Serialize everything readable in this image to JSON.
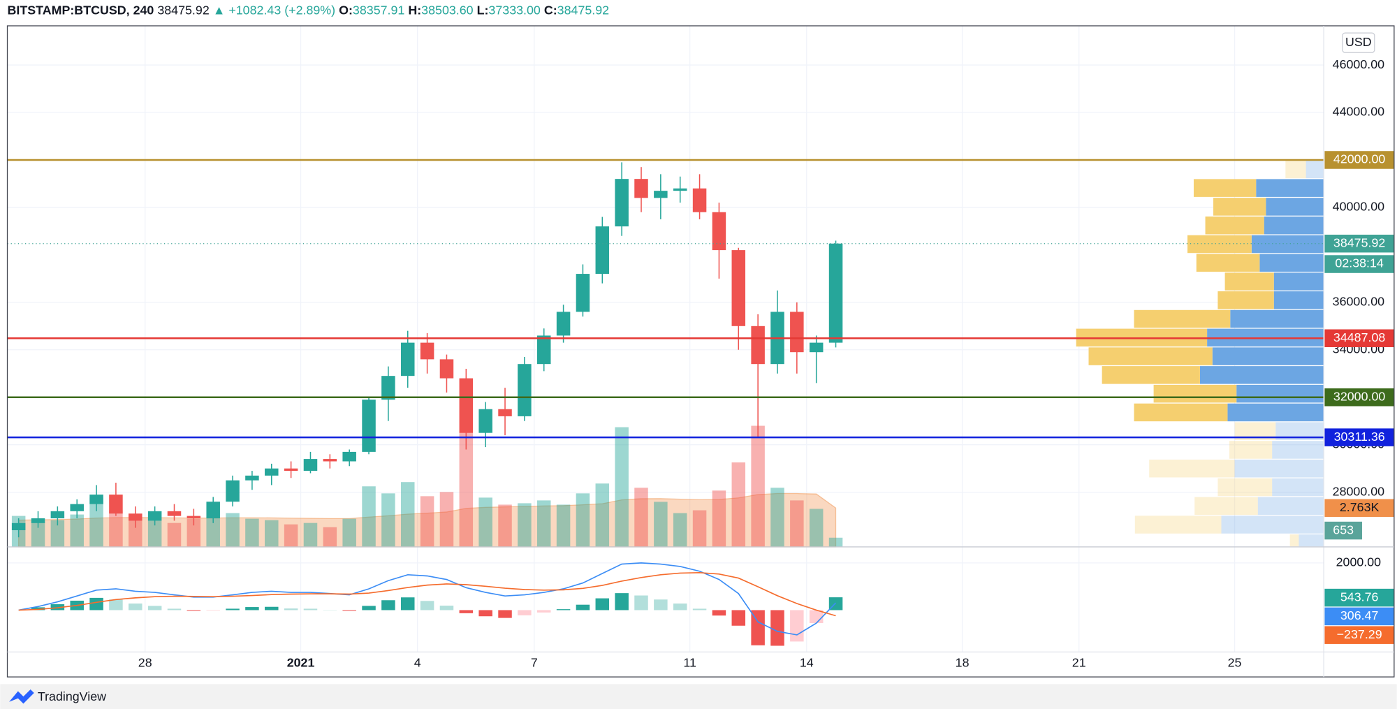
{
  "header": {
    "symbol": "BITSTAMP:BTCUSD, 240",
    "last": "38475.92",
    "change": "▲ +1082.43 (+2.89%)",
    "ohlc": [
      {
        "label": "O:",
        "value": "38357.91"
      },
      {
        "label": "H:",
        "value": "38503.60"
      },
      {
        "label": "L:",
        "value": "37333.00"
      },
      {
        "label": "C:",
        "value": "38475.92"
      }
    ]
  },
  "currency": "USD",
  "brand": "TradingView",
  "chart_data": {
    "type": "candlestick",
    "xlim": [
      -7.54,
      26.29
    ],
    "xticks": [
      {
        "value": -4,
        "label": "28"
      },
      {
        "value": 0,
        "label": "2021"
      },
      {
        "value": 3,
        "label": "4"
      },
      {
        "value": 6,
        "label": "7"
      },
      {
        "value": 10,
        "label": "11"
      },
      {
        "value": 13,
        "label": "14"
      },
      {
        "value": 17,
        "label": "18"
      },
      {
        "value": 20,
        "label": "21"
      },
      {
        "value": 24,
        "label": "25"
      }
    ],
    "ylim": [
      25696,
      47651
    ],
    "yticks": [
      {
        "value": 46000,
        "label": "46000.00"
      },
      {
        "value": 44000,
        "label": "44000.00"
      },
      {
        "value": 40000,
        "label": "40000.00"
      },
      {
        "value": 36000,
        "label": "36000.00"
      },
      {
        "value": 34000,
        "label": "34000.00"
      },
      {
        "value": 30000,
        "label": "30000.00"
      },
      {
        "value": 28000,
        "label": "28000.00"
      }
    ],
    "grid": true,
    "up_color": "#26a69a",
    "down_color": "#ef5350",
    "candles": {
      "x": [
        -7.5,
        -7,
        -6.5,
        -6,
        -5.5,
        -5,
        -4.5,
        -4,
        -3.5,
        -3,
        -2.5,
        -2,
        -1.5,
        -1,
        -0.5,
        0,
        0.5,
        1,
        1.5,
        2,
        2.5,
        3,
        3.5,
        4,
        4.5,
        5,
        5.5,
        6,
        6.5,
        7,
        7.5,
        8,
        8.5,
        9,
        9.5,
        10,
        10.5,
        11,
        11.5,
        12,
        12.5,
        13,
        13.5
      ],
      "open": [
        26400,
        26700,
        26900,
        27200,
        27500,
        27900,
        27100,
        26800,
        27200,
        27000,
        26900,
        27600,
        28500,
        28700,
        29000,
        28900,
        29400,
        29300,
        29700,
        31900,
        32900,
        34300,
        33600,
        32800,
        30500,
        31500,
        31200,
        33400,
        34600,
        35600,
        37200,
        39200,
        41200,
        40400,
        40700,
        40800,
        39800,
        38200,
        35000,
        33400,
        35600,
        33900,
        34300
      ],
      "high": [
        26900,
        27200,
        27400,
        27700,
        28300,
        28400,
        27400,
        27400,
        27500,
        27300,
        27800,
        28700,
        28900,
        29200,
        29300,
        29700,
        29600,
        29800,
        32000,
        33300,
        34800,
        34700,
        33800,
        33200,
        31800,
        32400,
        33700,
        34900,
        35900,
        37600,
        39600,
        41900,
        41700,
        41400,
        41300,
        41400,
        40200,
        38300,
        35500,
        36500,
        36000,
        34600,
        38600
      ],
      "low": [
        26100,
        26500,
        26600,
        26900,
        27200,
        27000,
        26500,
        26600,
        26800,
        26600,
        26700,
        27400,
        28100,
        28300,
        28600,
        28800,
        29000,
        29100,
        29600,
        31000,
        32400,
        33000,
        32200,
        29800,
        29900,
        30400,
        31000,
        33100,
        34300,
        35400,
        36800,
        38800,
        39800,
        39500,
        40200,
        39500,
        37000,
        34000,
        30300,
        33000,
        33000,
        32600,
        34100
      ],
      "close": [
        26700,
        26900,
        27200,
        27500,
        27900,
        27100,
        26800,
        27200,
        27000,
        26900,
        27600,
        28500,
        28700,
        29000,
        28900,
        29400,
        29300,
        29700,
        31900,
        32900,
        34300,
        33600,
        32800,
        30500,
        31500,
        31200,
        33400,
        34600,
        35600,
        37200,
        39200,
        41200,
        40400,
        40700,
        40800,
        39800,
        38200,
        35000,
        33400,
        35600,
        33900,
        34300,
        38475.92
      ]
    },
    "levels": [
      {
        "value": 42000,
        "label": "42000.00",
        "color": "#b8912f"
      },
      {
        "value": 34487.08,
        "label": "34487.08",
        "color": "#e53935"
      },
      {
        "value": 32000,
        "label": "32000.00",
        "color": "#3d6b1c"
      },
      {
        "value": 30311.36,
        "label": "30311.36",
        "color": "#1122dd"
      }
    ],
    "last_price": {
      "value": 38475.92,
      "label": "38475.92",
      "color": "#3fa395"
    },
    "countdown": "02:38:14",
    "volume": {
      "ylim": [
        0,
        37000
      ],
      "values": [
        2200,
        1800,
        1900,
        2300,
        3500,
        2600,
        2200,
        1900,
        1700,
        2000,
        2100,
        2400,
        2000,
        1900,
        1600,
        1700,
        1400,
        2000,
        4300,
        3800,
        4600,
        3600,
        3900,
        8200,
        3500,
        3000,
        3100,
        3300,
        3000,
        3800,
        4500,
        8500,
        4200,
        3200,
        2400,
        2600,
        4000,
        6000,
        8600,
        4200,
        3300,
        2700,
        653
      ],
      "ma": [
        1900,
        1920,
        1940,
        1980,
        2050,
        2080,
        2090,
        2080,
        2060,
        2050,
        2050,
        2070,
        2070,
        2060,
        2040,
        2030,
        2010,
        2010,
        2120,
        2210,
        2330,
        2400,
        2480,
        2740,
        2810,
        2840,
        2870,
        2910,
        2930,
        2990,
        3070,
        3340,
        3420,
        3430,
        3390,
        3350,
        3370,
        3480,
        3720,
        3790,
        3790,
        3760,
        2763
      ],
      "ma_label": "2.763K",
      "ma_color": "#f0904a"
    },
    "macd": {
      "ylim": [
        -1774,
        2604
      ],
      "yticks": [
        {
          "value": 2000,
          "label": "2000.00"
        }
      ],
      "line": [
        0,
        150,
        350,
        600,
        850,
        900,
        800,
        750,
        650,
        550,
        550,
        650,
        750,
        800,
        750,
        750,
        700,
        650,
        900,
        1250,
        1500,
        1450,
        1300,
        950,
        750,
        600,
        650,
        750,
        900,
        1150,
        1550,
        1950,
        2000,
        1950,
        1850,
        1650,
        1300,
        700,
        -500,
        -900,
        -1050,
        -550,
        306.47
      ],
      "signal": [
        0,
        30,
        100,
        200,
        330,
        450,
        520,
        570,
        590,
        580,
        570,
        590,
        620,
        660,
        680,
        690,
        690,
        680,
        720,
        830,
        960,
        1060,
        1110,
        1080,
        1010,
        930,
        870,
        850,
        860,
        920,
        1050,
        1230,
        1380,
        1500,
        1570,
        1590,
        1530,
        1360,
        990,
        610,
        280,
        0,
        -237.29
      ],
      "signal_label": "−237.29",
      "hist": [
        0,
        120,
        250,
        400,
        520,
        450,
        280,
        180,
        60,
        -30,
        -20,
        60,
        130,
        140,
        70,
        60,
        10,
        -30,
        180,
        420,
        540,
        390,
        190,
        -130,
        -260,
        -330,
        -220,
        -100,
        40,
        230,
        500,
        720,
        620,
        450,
        280,
        60,
        -230,
        -660,
        -1490,
        -1510,
        -1330,
        -550,
        543.76
      ],
      "line_color": "#3c8df5",
      "signal_color": "#f56c2d"
    },
    "profile": {
      "bucket": 788,
      "value_area": [
        30968,
        41212
      ],
      "up_color": "#f5cf6f",
      "down_color": "#6ca6e3",
      "tops": [
        42000,
        41212,
        40424,
        39636,
        38848,
        38060,
        37272,
        36484,
        35696,
        34908,
        34120,
        33332,
        32544,
        31756,
        30968,
        30180,
        29392,
        28604,
        27816,
        27028,
        26240
      ],
      "up": [
        23,
        70,
        59,
        66,
        72,
        71,
        55,
        63,
        108,
        147,
        139,
        110,
        93,
        105,
        46,
        48,
        96,
        61,
        71,
        97,
        10
      ],
      "down": [
        20,
        76,
        65,
        67,
        81,
        72,
        56,
        56,
        105,
        131,
        125,
        139,
        98,
        108,
        54,
        58,
        100,
        58,
        74,
        115,
        28
      ]
    }
  }
}
